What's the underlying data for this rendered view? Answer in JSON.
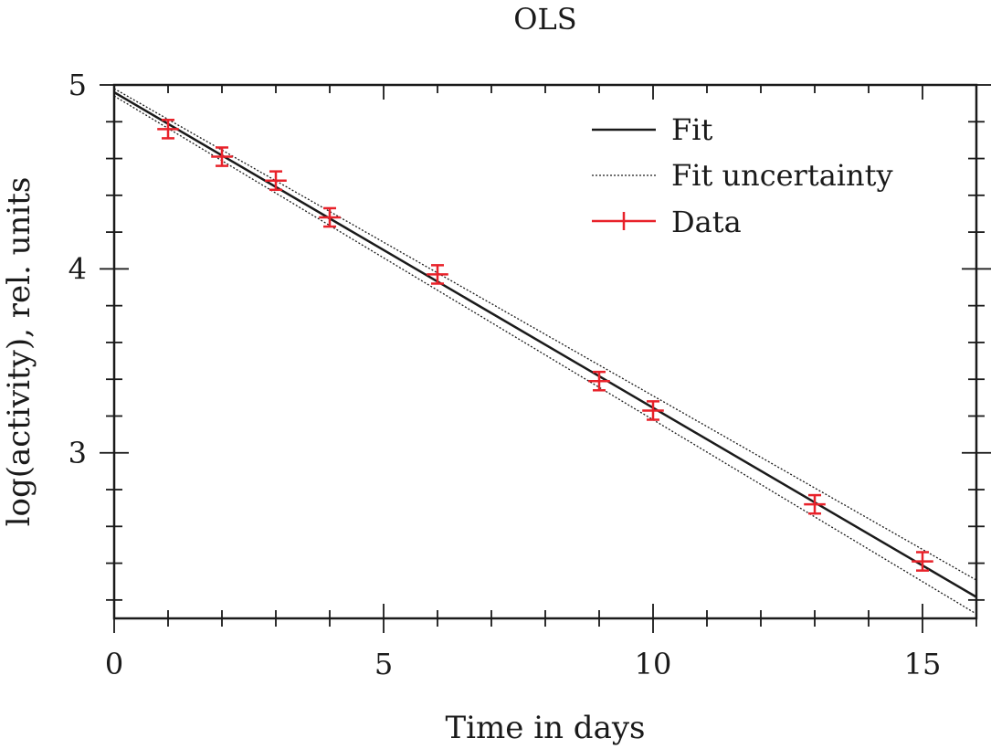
{
  "chart_data": {
    "type": "scatter",
    "title": "OLS",
    "xlabel": "Time in days",
    "ylabel": "log(activity), rel. units",
    "xlim": [
      0,
      16
    ],
    "ylim": [
      2.1,
      5
    ],
    "x_ticks": [
      "0",
      "5",
      "10",
      "15"
    ],
    "y_ticks": [
      "3",
      "4",
      "5"
    ],
    "x_tick_values": [
      0,
      5,
      10,
      15
    ],
    "y_tick_values": [
      3,
      4,
      5
    ],
    "x_minor_step": 1,
    "y_minor_step": 0.2,
    "grid": false,
    "legend": "top-right",
    "legend_entries": [
      "Fit",
      "Fit uncertainty",
      "Data"
    ],
    "fit": {
      "intercept": 4.96,
      "slope": -0.1715
    },
    "fit_uncertainty": {
      "upper": {
        "intercept": 4.98,
        "slope": -0.167
      },
      "lower": {
        "intercept": 4.94,
        "slope": -0.176
      }
    },
    "data": {
      "x": [
        1,
        2,
        3,
        4,
        6,
        9,
        10,
        13,
        15
      ],
      "y": [
        4.76,
        4.61,
        4.48,
        4.28,
        3.97,
        3.39,
        3.23,
        2.72,
        2.41
      ],
      "x_err": 0.2,
      "y_err": 0.05
    },
    "colors": {
      "fit": "#1a1a1a",
      "data": "#e8222a",
      "axes": "#1a1a1a"
    }
  }
}
